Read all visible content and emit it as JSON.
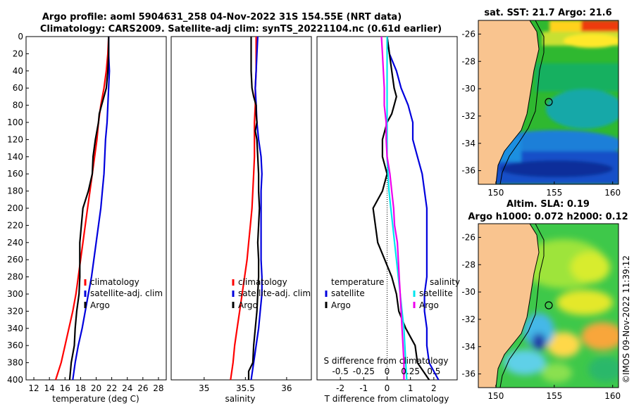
{
  "figure": {
    "title_line1": "Argo profile: aoml 5904631_258 04-Nov-2022 31S 154.55E (NRT data)",
    "title_line2": "Climatology: CARS2009. Satellite-adj clim: synTS_20221104.nc (0.61d earlier)",
    "copyright": "©IMOS 09-Nov-2022 11:39:12"
  },
  "colors": {
    "climatology": "#ff0000",
    "satellite": "#0000dd",
    "argo": "#000000",
    "sat_salinity": "#00e5ee",
    "argo_salinity": "#ee00ee",
    "land": "#f9c48f",
    "coast": "#000000"
  },
  "chart_data": [
    {
      "type": "line",
      "id": "temperature",
      "xlabel": "temperature (deg C)",
      "ylabel": "",
      "xlim": [
        11,
        29
      ],
      "ylim": [
        400,
        0
      ],
      "xticks": [
        "12",
        "14",
        "16",
        "18",
        "20",
        "22",
        "24",
        "26",
        "28"
      ],
      "yticks": [
        "0",
        "20",
        "40",
        "60",
        "80",
        "100",
        "120",
        "140",
        "160",
        "180",
        "200",
        "220",
        "240",
        "260",
        "280",
        "300",
        "320",
        "340",
        "360",
        "380",
        "400"
      ],
      "legend": [
        "climatology",
        "satellite-adj. clim",
        "Argo"
      ],
      "series": [
        {
          "name": "climatology",
          "color": "#ff0000",
          "depth": [
            0,
            20,
            40,
            60,
            80,
            100,
            120,
            140,
            160,
            180,
            200,
            220,
            240,
            260,
            280,
            300,
            320,
            340,
            360,
            380,
            400
          ],
          "values": [
            21.6,
            21.5,
            21.3,
            21.0,
            20.6,
            20.3,
            20.1,
            19.8,
            19.5,
            19.2,
            18.9,
            18.6,
            18.3,
            18.0,
            17.7,
            17.4,
            17.0,
            16.5,
            16.0,
            15.5,
            14.8
          ]
        },
        {
          "name": "satellite-adj. clim",
          "color": "#0000dd",
          "depth": [
            0,
            20,
            40,
            60,
            80,
            100,
            120,
            140,
            160,
            180,
            200,
            220,
            240,
            260,
            280,
            300,
            320,
            340,
            360,
            380,
            400
          ],
          "values": [
            21.6,
            21.6,
            21.7,
            21.6,
            21.5,
            21.4,
            21.2,
            21.1,
            21.0,
            20.8,
            20.6,
            20.3,
            20.0,
            19.7,
            19.4,
            19.0,
            18.6,
            18.2,
            17.7,
            17.3,
            17.0
          ]
        },
        {
          "name": "Argo",
          "color": "#000000",
          "depth": [
            0,
            20,
            40,
            60,
            70,
            80,
            90,
            100,
            120,
            140,
            160,
            180,
            200,
            220,
            240,
            260,
            280,
            300,
            320,
            340,
            360,
            380,
            400
          ],
          "values": [
            21.6,
            21.6,
            21.5,
            21.3,
            21.0,
            20.7,
            20.4,
            20.3,
            19.9,
            19.6,
            19.5,
            19.0,
            18.3,
            18.1,
            17.9,
            17.9,
            17.9,
            17.8,
            17.5,
            17.3,
            17.2,
            16.8,
            16.6
          ]
        }
      ]
    },
    {
      "type": "line",
      "id": "salinity",
      "xlabel": "salinity",
      "ylabel": "",
      "xlim": [
        34.6,
        36.3
      ],
      "ylim": [
        400,
        0
      ],
      "xticks": [
        "35",
        "35.5",
        "36"
      ],
      "legend": [
        "climatology",
        "satellite-adj. clim",
        "Argo"
      ],
      "series": [
        {
          "name": "climatology",
          "color": "#ff0000",
          "depth": [
            0,
            20,
            40,
            60,
            80,
            100,
            120,
            140,
            160,
            180,
            200,
            220,
            240,
            260,
            280,
            300,
            320,
            340,
            360,
            380,
            400
          ],
          "values": [
            35.63,
            35.63,
            35.63,
            35.62,
            35.62,
            35.61,
            35.61,
            35.61,
            35.6,
            35.59,
            35.58,
            35.56,
            35.54,
            35.52,
            35.49,
            35.46,
            35.43,
            35.4,
            35.37,
            35.35,
            35.32
          ]
        },
        {
          "name": "satellite-adj. clim",
          "color": "#0000dd",
          "depth": [
            0,
            20,
            40,
            60,
            80,
            100,
            120,
            140,
            160,
            180,
            200,
            220,
            240,
            260,
            280,
            300,
            320,
            340,
            360,
            380,
            400
          ],
          "values": [
            35.65,
            35.64,
            35.63,
            35.62,
            35.63,
            35.64,
            35.66,
            35.69,
            35.7,
            35.69,
            35.69,
            35.69,
            35.69,
            35.69,
            35.7,
            35.7,
            35.68,
            35.66,
            35.63,
            35.6,
            35.57
          ]
        },
        {
          "name": "Argo",
          "color": "#000000",
          "depth": [
            0,
            20,
            40,
            60,
            70,
            80,
            90,
            100,
            110,
            120,
            140,
            160,
            180,
            200,
            220,
            240,
            260,
            280,
            300,
            320,
            340,
            360,
            380,
            390,
            400
          ],
          "values": [
            35.57,
            35.57,
            35.57,
            35.58,
            35.6,
            35.63,
            35.63,
            35.64,
            35.62,
            35.64,
            35.65,
            35.66,
            35.66,
            35.67,
            35.66,
            35.65,
            35.66,
            35.66,
            35.65,
            35.64,
            35.62,
            35.6,
            35.59,
            35.54,
            35.54
          ]
        }
      ]
    },
    {
      "type": "line",
      "id": "difference",
      "xlabel": "T difference from climatology",
      "top_xlabel": "S difference from climatology",
      "xlim": [
        -3,
        3
      ],
      "ylim": [
        400,
        0
      ],
      "xticks": [
        "-2",
        "-1",
        "0",
        "1",
        "2"
      ],
      "top_ticks": [
        "-0.5",
        "-0.25",
        "0",
        "0.25",
        "0.5"
      ],
      "legend_temperature_title": "temperature",
      "legend_salinity_title": "salinity",
      "legend_temperature": [
        "satellite",
        "Argo"
      ],
      "legend_salinity": [
        "satellite",
        "Argo"
      ],
      "series": [
        {
          "name": "T satellite",
          "color": "#0000dd",
          "depth": [
            0,
            20,
            40,
            60,
            80,
            100,
            120,
            140,
            160,
            180,
            200,
            220,
            240,
            260,
            280,
            300,
            320,
            340,
            360,
            380,
            400
          ],
          "values": [
            0.0,
            0.1,
            0.4,
            0.6,
            0.9,
            1.1,
            1.1,
            1.3,
            1.5,
            1.6,
            1.7,
            1.7,
            1.7,
            1.7,
            1.7,
            1.6,
            1.6,
            1.7,
            1.7,
            1.8,
            2.2
          ]
        },
        {
          "name": "T Argo",
          "color": "#000000",
          "depth": [
            0,
            20,
            40,
            60,
            70,
            80,
            90,
            100,
            120,
            140,
            160,
            180,
            200,
            220,
            240,
            260,
            280,
            300,
            320,
            340,
            360,
            380,
            400
          ],
          "values": [
            0.0,
            0.1,
            0.2,
            0.3,
            0.4,
            0.3,
            0.2,
            0.0,
            -0.2,
            -0.2,
            0.0,
            -0.2,
            -0.6,
            -0.5,
            -0.4,
            -0.1,
            0.2,
            0.4,
            0.5,
            0.8,
            1.2,
            1.3,
            1.8
          ]
        },
        {
          "name": "S satellite",
          "color": "#00e5ee",
          "depth": [
            0,
            20,
            40,
            60,
            80,
            100,
            120,
            140,
            160,
            180,
            200,
            220,
            240,
            260,
            280,
            300,
            320,
            340,
            360,
            380,
            400
          ],
          "values": [
            0.0,
            0.0,
            0.0,
            0.0,
            0.0,
            0.0,
            0.0,
            0.0,
            0.01,
            0.02,
            0.04,
            0.06,
            0.08,
            0.1,
            0.12,
            0.14,
            0.16,
            0.18,
            0.19,
            0.2,
            0.21
          ]
        },
        {
          "name": "S Argo",
          "color": "#ee00ee",
          "depth": [
            0,
            20,
            40,
            60,
            80,
            100,
            120,
            140,
            160,
            180,
            200,
            220,
            240,
            260,
            280,
            300,
            320,
            340,
            360,
            380,
            400
          ],
          "values": [
            -0.06,
            -0.05,
            -0.04,
            -0.03,
            -0.03,
            -0.01,
            -0.01,
            0.0,
            0.03,
            0.05,
            0.07,
            0.08,
            0.11,
            0.12,
            0.13,
            0.14,
            0.15,
            0.16,
            0.17,
            0.18,
            0.18
          ]
        }
      ]
    },
    {
      "type": "heatmap",
      "id": "sst_map",
      "title": "sat. SST: 21.7 Argo: 21.6",
      "xlim": [
        148.5,
        160.5
      ],
      "ylim": [
        -37,
        -25
      ],
      "xticks": [
        "150",
        "155",
        "160"
      ],
      "yticks": [
        "-26",
        "-28",
        "-30",
        "-32",
        "-34",
        "-36"
      ],
      "profile_location": {
        "lon": 154.55,
        "lat": -31
      }
    },
    {
      "type": "heatmap",
      "id": "sla_map",
      "title_line1": "Altim. SLA: 0.19",
      "title_line2": "Argo h1000: 0.072 h2000: 0.12",
      "xlim": [
        148.5,
        160.5
      ],
      "ylim": [
        -37,
        -25
      ],
      "xticks": [
        "150",
        "155",
        "160"
      ],
      "yticks": [
        "-26",
        "-28",
        "-30",
        "-32",
        "-34",
        "-36"
      ],
      "profile_location": {
        "lon": 154.55,
        "lat": -31
      }
    }
  ]
}
